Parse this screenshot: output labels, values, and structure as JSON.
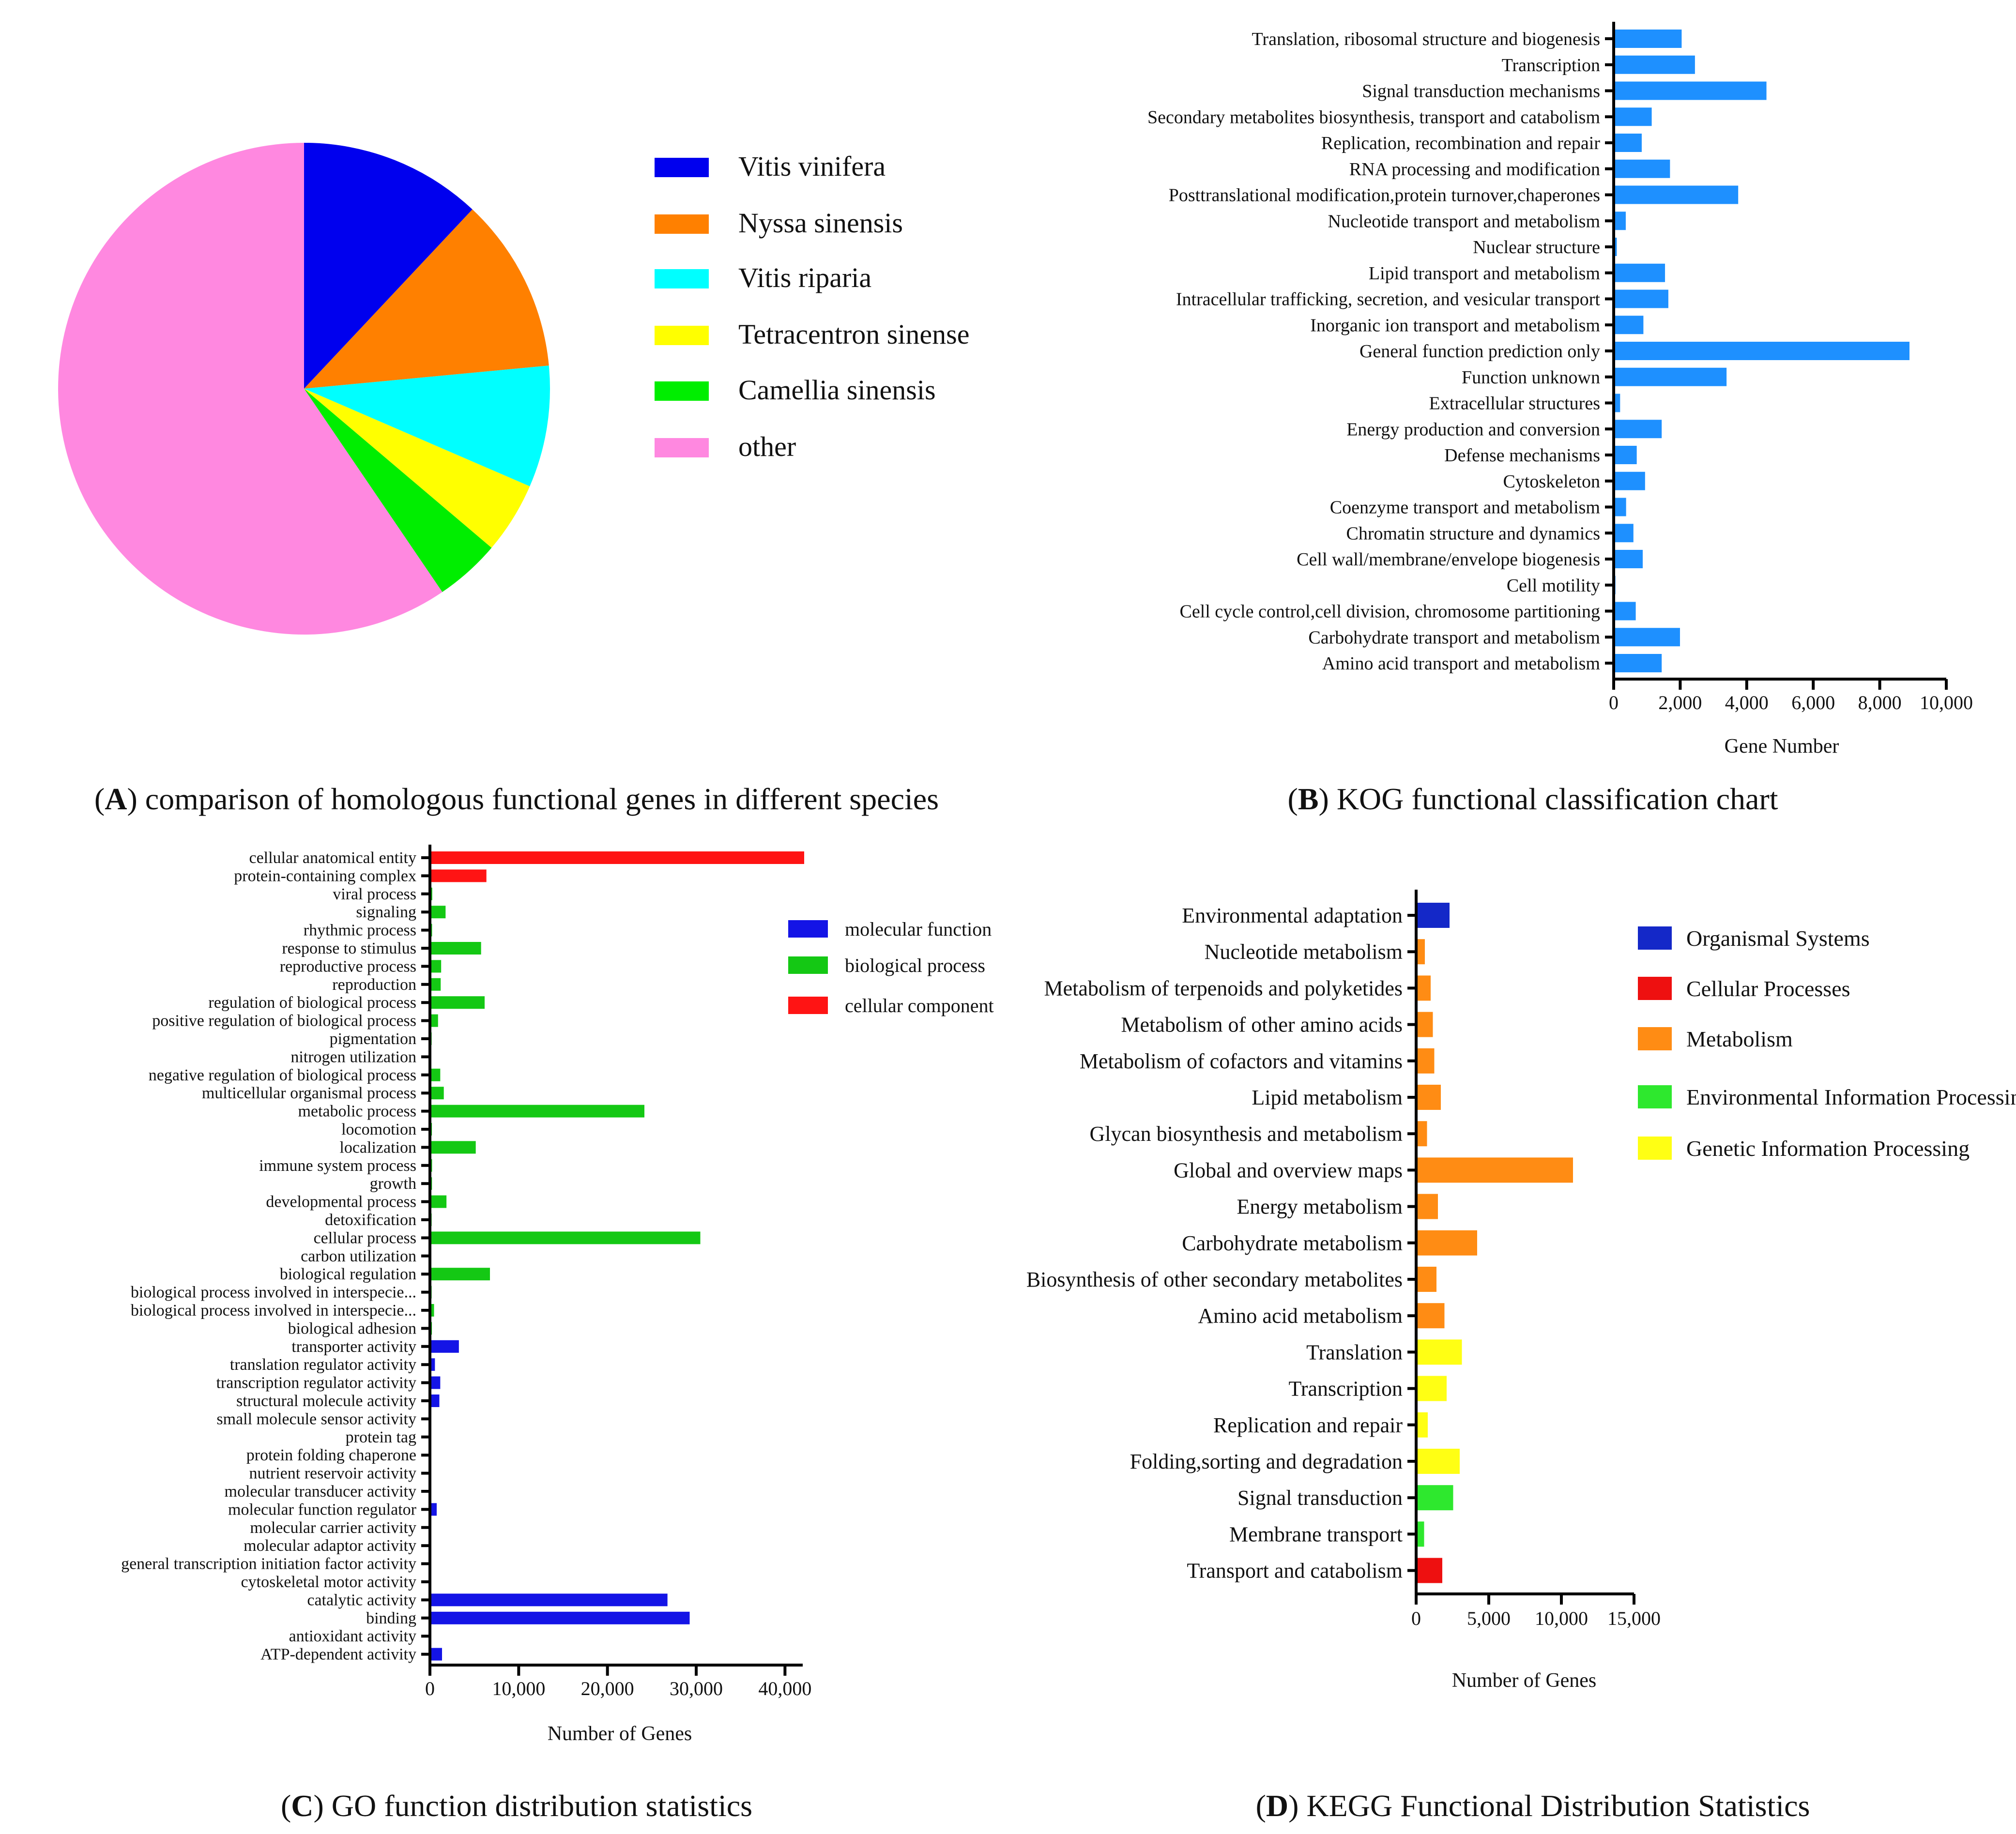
{
  "chart_data": [
    {
      "id": "A",
      "type": "pie",
      "caption_letter": "A",
      "caption_text": "comparison of homologous functional genes in different species",
      "slices": [
        {
          "label": "Vitis vinifera",
          "value": 12.0,
          "color": "#0000ee"
        },
        {
          "label": "Nyssa sinensis",
          "value": 11.5,
          "color": "#ff8000"
        },
        {
          "label": "Vitis riparia",
          "value": 8.0,
          "color": "#00ffff"
        },
        {
          "label": "Tetracentron sinense",
          "value": 4.7,
          "color": "#ffff00"
        },
        {
          "label": "Camellia sinensis",
          "value": 4.3,
          "color": "#00ee00"
        },
        {
          "label": "other",
          "value": 59.5,
          "color": "#ff88e0"
        }
      ]
    },
    {
      "id": "B",
      "type": "bar",
      "orientation": "horizontal",
      "caption_letter": "B",
      "caption_text": "KOG functional classification chart",
      "xlabel": "Gene Number",
      "xlim": [
        0,
        10000
      ],
      "xticks": [
        0,
        2000,
        4000,
        6000,
        8000,
        10000
      ],
      "xtick_labels": [
        "0",
        "2,000",
        "4,000",
        "6,000",
        "8,000",
        "10,000"
      ],
      "color": "#1e90ff",
      "categories": [
        "Translation, ribosomal structure and biogenesis",
        "Transcription",
        "Signal transduction mechanisms",
        "Secondary metabolites biosynthesis, transport and catabolism",
        "Replication, recombination and repair",
        "RNA processing and modification",
        "Posttranslational modification,protein turnover,chaperones",
        "Nucleotide transport and metabolism",
        "Nuclear structure",
        "Lipid transport and metabolism",
        "Intracellular trafficking, secretion, and vesicular transport",
        "Inorganic ion transport and metabolism",
        "General function prediction only",
        "Function unknown",
        "Extracellular structures",
        "Energy production and conversion",
        "Defense mechanisms",
        "Cytoskeleton",
        "Coenzyme transport and metabolism",
        "Chromatin structure and dynamics",
        "Cell wall/membrane/envelope biogenesis",
        "Cell motility",
        "Cell cycle control,cell division, chromosome partitioning",
        "Carbohydrate transport and metabolism",
        "Amino acid transport and metabolism"
      ],
      "values": [
        2000,
        2400,
        4550,
        1100,
        800,
        1650,
        3700,
        320,
        50,
        1500,
        1600,
        850,
        8850,
        3350,
        150,
        1400,
        650,
        900,
        330,
        550,
        830,
        10,
        620,
        1950,
        1400
      ]
    },
    {
      "id": "C",
      "type": "bar",
      "orientation": "horizontal",
      "caption_letter": "C",
      "caption_text": "GO function distribution statistics",
      "xlabel": "Number of Genes",
      "xlim": [
        0,
        42000
      ],
      "xticks": [
        0,
        10000,
        20000,
        30000,
        40000
      ],
      "xtick_labels": [
        "0",
        "10,000",
        "20,000",
        "30,000",
        "40,000"
      ],
      "legend": [
        {
          "label": "molecular function",
          "color": "#1414e6"
        },
        {
          "label": "biological process",
          "color": "#14c814"
        },
        {
          "label": "cellular component",
          "color": "#ff1414"
        }
      ],
      "categories": [
        "cellular anatomical entity",
        "protein-containing complex",
        "viral process",
        "signaling",
        "rhythmic process",
        "response to stimulus",
        "reproductive process",
        "reproduction",
        "regulation of biological process",
        "positive regulation of biological process",
        "pigmentation",
        "nitrogen utilization",
        "negative regulation of biological process",
        "multicellular organismal process",
        "metabolic process",
        "locomotion",
        "localization",
        "immune system process",
        "growth",
        "developmental process",
        "detoxification",
        "cellular process",
        "carbon utilization",
        "biological regulation",
        "biological process involved in interspecie...",
        "biological process involved in interspecie...",
        "biological adhesion",
        "transporter activity",
        "translation regulator activity",
        "transcription regulator activity",
        "structural molecule activity",
        "small molecule sensor activity",
        "protein tag",
        "protein folding chaperone",
        "nutrient reservoir activity",
        "molecular transducer activity",
        "molecular function regulator",
        "molecular carrier activity",
        "molecular adaptor activity",
        "general transcription initiation factor activity",
        "cytoskeletal motor activity",
        "catalytic activity",
        "binding",
        "antioxidant activity",
        "ATP-dependent activity"
      ],
      "groups": [
        "cellular component",
        "cellular component",
        "biological process",
        "biological process",
        "biological process",
        "biological process",
        "biological process",
        "biological process",
        "biological process",
        "biological process",
        "biological process",
        "biological process",
        "biological process",
        "biological process",
        "biological process",
        "biological process",
        "biological process",
        "biological process",
        "biological process",
        "biological process",
        "biological process",
        "biological process",
        "biological process",
        "biological process",
        "biological process",
        "biological process",
        "biological process",
        "molecular function",
        "molecular function",
        "molecular function",
        "molecular function",
        "molecular function",
        "molecular function",
        "molecular function",
        "molecular function",
        "molecular function",
        "molecular function",
        "molecular function",
        "molecular function",
        "molecular function",
        "molecular function",
        "molecular function",
        "molecular function",
        "molecular function",
        "molecular function"
      ],
      "values": [
        42000,
        6200,
        100,
        1600,
        80,
        5600,
        1100,
        1050,
        6000,
        750,
        30,
        20,
        1000,
        1400,
        24000,
        60,
        5000,
        80,
        70,
        1700,
        30,
        30300,
        20,
        6600,
        30,
        300,
        60,
        3100,
        400,
        1000,
        900,
        20,
        20,
        20,
        20,
        20,
        600,
        20,
        20,
        20,
        20,
        26600,
        29100,
        10,
        1200
      ]
    },
    {
      "id": "D",
      "type": "bar",
      "orientation": "horizontal",
      "caption_letter": "D",
      "caption_text": "KEGG Functional Distribution Statistics",
      "xlabel": "Number of Genes",
      "xlim": [
        0,
        15000
      ],
      "xticks": [
        0,
        5000,
        10000,
        15000
      ],
      "xtick_labels": [
        "0",
        "5,000",
        "10,000",
        "15,000"
      ],
      "legend": [
        {
          "label": "Organismal Systems",
          "color": "#1428c8"
        },
        {
          "label": "Cellular Processes",
          "color": "#ee1010"
        },
        {
          "label": "Metabolism",
          "color": "#ff8c14"
        },
        {
          "label": "Environmental Information Processing",
          "color": "#2ee82e"
        },
        {
          "label": "Genetic Information Processing",
          "color": "#ffff14"
        }
      ],
      "categories": [
        "Environmental adaptation",
        "Nucleotide metabolism",
        "Metabolism of terpenoids and polyketides",
        "Metabolism of other amino acids",
        "Metabolism of cofactors and vitamins",
        "Lipid metabolism",
        "Glycan biosynthesis and metabolism",
        "Global and overview maps",
        "Energy metabolism",
        "Carbohydrate metabolism",
        "Biosynthesis of other secondary metabolites",
        "Amino acid metabolism",
        "Translation",
        "Transcription",
        "Replication and repair",
        "Folding,sorting and degradation",
        "Signal transduction",
        "Membrane transport",
        "Transport and catabolism"
      ],
      "groups": [
        "Organismal Systems",
        "Metabolism",
        "Metabolism",
        "Metabolism",
        "Metabolism",
        "Metabolism",
        "Metabolism",
        "Metabolism",
        "Metabolism",
        "Metabolism",
        "Metabolism",
        "Metabolism",
        "Genetic Information Processing",
        "Genetic Information Processing",
        "Genetic Information Processing",
        "Genetic Information Processing",
        "Environmental Information Processing",
        "Environmental Information Processing",
        "Cellular Processes"
      ],
      "values": [
        2200,
        500,
        900,
        1050,
        1150,
        1600,
        650,
        10700,
        1400,
        4100,
        1300,
        1850,
        3050,
        2000,
        700,
        2900,
        2450,
        450,
        1700
      ]
    }
  ]
}
